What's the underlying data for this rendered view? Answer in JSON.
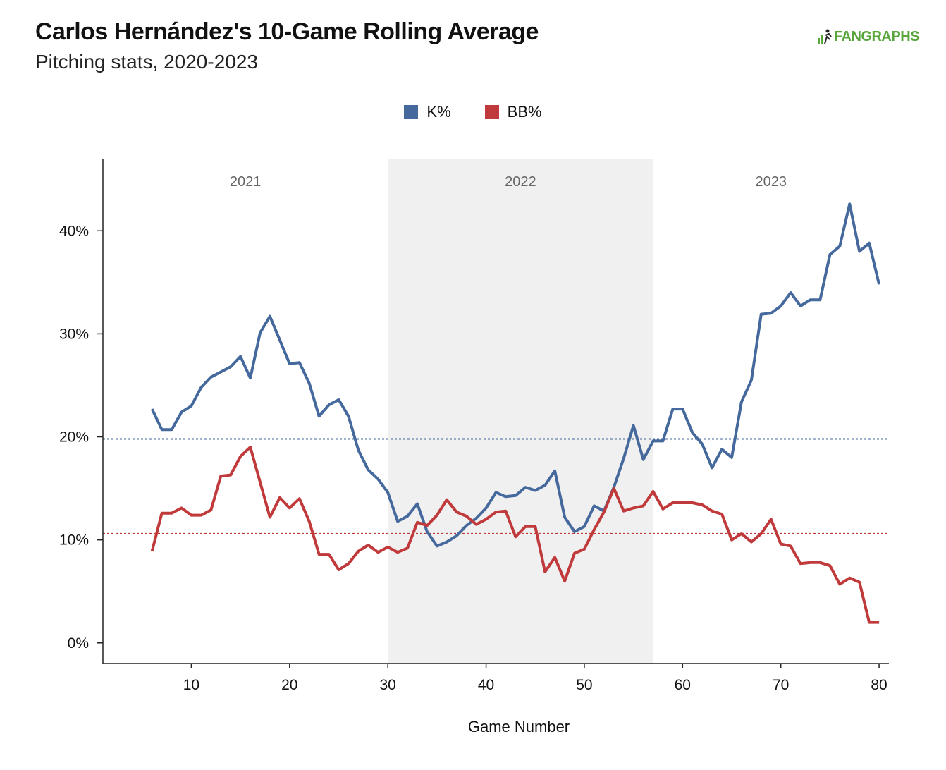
{
  "header": {
    "title": "Carlos Hernández's 10-Game Rolling Average",
    "subtitle": "Pitching stats, 2020-2023",
    "logo_text": "FANGRAPHS"
  },
  "colors": {
    "k": "#45699c",
    "bb": "#c0393b",
    "band": "#f0f0f0",
    "logo": "#5aa63c"
  },
  "chart_data": {
    "type": "line",
    "title": "Carlos Hernández's 10-Game Rolling Average",
    "subtitle": "Pitching stats, 2020-2023",
    "xlabel": "Game Number",
    "ylabel": "",
    "xlim": [
      1,
      81
    ],
    "ylim": [
      -2,
      47
    ],
    "xticks": [
      10,
      20,
      30,
      40,
      50,
      60,
      70,
      80
    ],
    "xtick_labels": [
      "10",
      "20",
      "30",
      "40",
      "50",
      "60",
      "70",
      "80"
    ],
    "yticks": [
      0,
      10,
      20,
      30,
      40
    ],
    "ytick_labels": [
      "0%",
      "10%",
      "20%",
      "30%",
      "40%"
    ],
    "grid": false,
    "legend_position": "top-center",
    "seasons": [
      {
        "label": "2021",
        "start": 1,
        "end": 30,
        "shaded": false
      },
      {
        "label": "2022",
        "start": 30,
        "end": 57,
        "shaded": true
      },
      {
        "label": "2023",
        "start": 57,
        "end": 81,
        "shaded": false
      }
    ],
    "reference_lines": [
      {
        "series": "K%",
        "value": 19.8
      },
      {
        "series": "BB%",
        "value": 10.6
      }
    ],
    "x": [
      6,
      7,
      8,
      9,
      10,
      11,
      12,
      13,
      14,
      15,
      16,
      17,
      18,
      19,
      20,
      21,
      22,
      23,
      24,
      25,
      26,
      27,
      28,
      29,
      30,
      31,
      32,
      33,
      34,
      35,
      36,
      37,
      38,
      39,
      40,
      41,
      42,
      43,
      44,
      45,
      46,
      47,
      48,
      49,
      50,
      51,
      52,
      53,
      54,
      55,
      56,
      57,
      58,
      59,
      60,
      61,
      62,
      63,
      64,
      65,
      66,
      67,
      68,
      69,
      70,
      71,
      72,
      73,
      74,
      75,
      76,
      77,
      78,
      79,
      80
    ],
    "series": [
      {
        "name": "K%",
        "values": [
          22.7,
          20.7,
          20.7,
          22.4,
          23.0,
          24.8,
          25.8,
          26.3,
          26.8,
          27.8,
          25.7,
          30.1,
          31.7,
          29.4,
          27.1,
          27.2,
          25.2,
          22.0,
          23.1,
          23.6,
          22.0,
          18.7,
          16.8,
          15.9,
          14.6,
          11.8,
          12.3,
          13.5,
          10.8,
          9.4,
          9.8,
          10.4,
          11.4,
          12.1,
          13.1,
          14.6,
          14.2,
          14.3,
          15.1,
          14.8,
          15.3,
          16.7,
          12.2,
          10.8,
          11.3,
          13.3,
          12.8,
          15.1,
          17.9,
          21.1,
          17.8,
          19.6,
          19.6,
          22.7,
          22.7,
          20.4,
          19.3,
          17.0,
          18.8,
          18.0,
          23.4,
          25.5,
          31.9,
          32.0,
          32.7,
          34.0,
          32.7,
          33.3,
          33.3,
          37.7,
          38.5,
          42.6,
          38.0,
          38.8,
          34.8
        ]
      },
      {
        "name": "BB%",
        "values": [
          8.9,
          12.6,
          12.6,
          13.1,
          12.4,
          12.4,
          12.9,
          16.2,
          16.3,
          18.1,
          19.0,
          15.6,
          12.2,
          14.1,
          13.1,
          14.0,
          11.8,
          8.6,
          8.6,
          7.1,
          7.7,
          8.9,
          9.5,
          8.8,
          9.3,
          8.8,
          9.2,
          11.7,
          11.4,
          12.4,
          13.9,
          12.7,
          12.3,
          11.5,
          12.0,
          12.7,
          12.8,
          10.3,
          11.3,
          11.3,
          6.9,
          8.3,
          6.0,
          8.7,
          9.1,
          11.0,
          12.7,
          15.0,
          12.8,
          13.1,
          13.3,
          14.7,
          13.0,
          13.6,
          13.6,
          13.6,
          13.4,
          12.8,
          12.5,
          10.0,
          10.6,
          9.8,
          10.6,
          12.0,
          9.6,
          9.4,
          7.7,
          7.8,
          7.8,
          7.5,
          5.7,
          6.3,
          5.9,
          2.0,
          2.0
        ]
      }
    ]
  },
  "legend": [
    {
      "label": "K%",
      "color": "#45699c"
    },
    {
      "label": "BB%",
      "color": "#c0393b"
    }
  ]
}
